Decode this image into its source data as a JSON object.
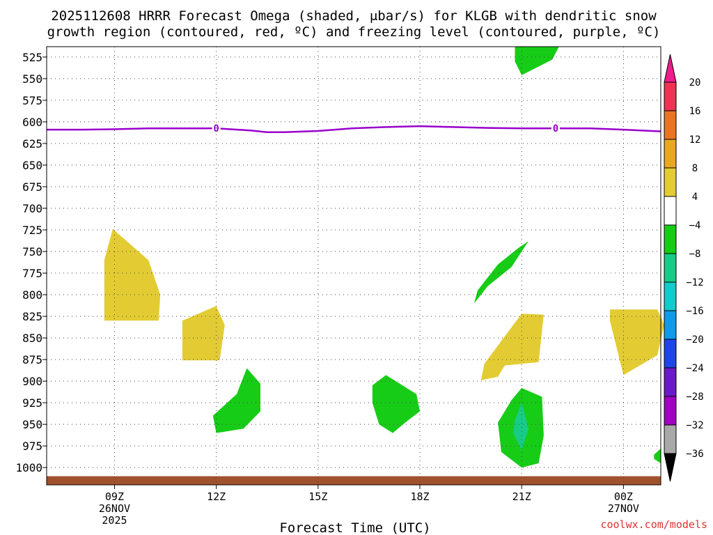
{
  "chart_data": {
    "type": "heatmap",
    "title_line1": "2025112608 HRRR Forecast Omega (shaded, μbar/s) for KLGB with dendritic snow",
    "title_line2": "growth region (contoured, red, ºC) and freezing level (contoured, purple, ºC)",
    "xlabel": "Forecast Time (UTC)",
    "x_range_hours": [
      7.0,
      25.1
    ],
    "x_ticks": [
      {
        "hour": 9,
        "label": "09Z",
        "sub1": "26NOV",
        "sub2": "2025"
      },
      {
        "hour": 12,
        "label": "12Z",
        "sub1": "",
        "sub2": ""
      },
      {
        "hour": 15,
        "label": "15Z",
        "sub1": "",
        "sub2": ""
      },
      {
        "hour": 18,
        "label": "18Z",
        "sub1": "",
        "sub2": ""
      },
      {
        "hour": 21,
        "label": "21Z",
        "sub1": "",
        "sub2": ""
      },
      {
        "hour": 24,
        "label": "00Z",
        "sub1": "27NOV",
        "sub2": ""
      }
    ],
    "y_range_hPa": [
      513,
      1020
    ],
    "y_ticks": [
      525,
      550,
      575,
      600,
      625,
      650,
      675,
      700,
      725,
      750,
      775,
      800,
      825,
      850,
      875,
      900,
      925,
      950,
      975,
      1000
    ],
    "grid": true,
    "freezing_level": {
      "label": "0",
      "color": "#9900cc",
      "label_hours": [
        12.0,
        22.0
      ],
      "hours": [
        7.0,
        8,
        9,
        10,
        11,
        12,
        13,
        13.5,
        14,
        15,
        16,
        17,
        18,
        19,
        20,
        21,
        22,
        23,
        24,
        25.1
      ],
      "pressure": [
        609,
        609,
        608.5,
        607.5,
        607.5,
        607.5,
        610,
        612,
        612,
        610.5,
        607.5,
        606,
        605,
        606,
        607,
        607.5,
        607.5,
        607.5,
        609,
        611
      ]
    },
    "omega_regions": [
      {
        "name": "positive-09Z",
        "value_class": "4 to 8",
        "hours": [
          8.7,
          8.7,
          8.95,
          10.0,
          10.35,
          10.3,
          8.7
        ],
        "pressure": [
          785,
          760,
          724,
          760,
          800,
          830,
          830
        ]
      },
      {
        "name": "positive-11Z",
        "value_class": "4 to 8",
        "hours": [
          11.0,
          12.0,
          12.25,
          12.1,
          11.0
        ],
        "pressure": [
          830,
          813,
          835,
          876,
          876
        ]
      },
      {
        "name": "negative-13Z",
        "value_class": "-8 to -4",
        "hours": [
          12.9,
          13.3,
          13.3,
          12.8,
          12.0,
          11.9,
          12.6
        ],
        "pressure": [
          885,
          903,
          935,
          955,
          960,
          940,
          915
        ]
      },
      {
        "name": "negative-17Z",
        "value_class": "-8 to -4",
        "hours": [
          16.6,
          17.0,
          17.9,
          18.0,
          17.6,
          17.2,
          16.8,
          16.6
        ],
        "pressure": [
          905,
          893,
          915,
          935,
          947,
          960,
          950,
          925
        ]
      },
      {
        "name": "negative-21Z-upper",
        "value_class": "-8 to -4",
        "hours": [
          20.9,
          21.2,
          20.7,
          20.0,
          19.6,
          19.7,
          20.3
        ],
        "pressure": [
          746,
          738,
          768,
          790,
          810,
          795,
          765
        ]
      },
      {
        "name": "positive-21Z",
        "value_class": "4 to 8",
        "hours": [
          20.6,
          21.0,
          21.65,
          21.5,
          20.5,
          20.3,
          19.8,
          19.9
        ],
        "pressure": [
          843,
          822,
          823,
          878,
          882,
          895,
          899,
          880
        ]
      },
      {
        "name": "negative-21Z-lower",
        "value_class": "-8 to -4",
        "hours": [
          20.7,
          21.0,
          21.6,
          21.65,
          21.5,
          21.0,
          20.4,
          20.3
        ],
        "pressure": [
          922,
          908,
          918,
          963,
          995,
          1000,
          982,
          948
        ]
      },
      {
        "name": "negative-21Z-core",
        "value_class": "-12 to -8",
        "hours": [
          20.8,
          21.0,
          21.2,
          21.0,
          20.75
        ],
        "pressure": [
          945,
          925,
          955,
          980,
          960
        ]
      },
      {
        "name": "negative-21Z-top",
        "value_class": "-8 to -4",
        "hours": [
          20.8,
          21.2,
          22.1,
          21.9,
          21.0,
          20.8
        ],
        "pressure": [
          513,
          513,
          513,
          528,
          546,
          530
        ]
      },
      {
        "name": "positive-00Z",
        "value_class": "4 to 8",
        "hours": [
          23.6,
          25.0,
          25.2,
          25.0,
          24.0,
          23.6
        ],
        "pressure": [
          817,
          817,
          835,
          870,
          893,
          830
        ]
      },
      {
        "name": "negative-01Z-corner",
        "value_class": "-8 to -4",
        "hours": [
          24.9,
          25.1,
          25.1,
          24.9
        ],
        "pressure": [
          985,
          978,
          995,
          990
        ]
      }
    ],
    "surface_strip": {
      "color": "#a0522d",
      "pressure_top": 1010
    },
    "colorbar": {
      "levels": [
        "20",
        "16",
        "12",
        "8",
        "4",
        "−4",
        "−8",
        "−12",
        "−16",
        "−20",
        "−24",
        "−28",
        "−32",
        "−36"
      ],
      "colors": [
        "#ee3355",
        "#e87525",
        "#e8a822",
        "#e3cc33",
        "#ffffff",
        "#17cc17",
        "#17cc88",
        "#12cccc",
        "#129ae8",
        "#1f44e8",
        "#6a1ac8",
        "#a000c0",
        "#a8a8a8"
      ],
      "top_arrow_color": "#ee1c8c",
      "bottom_arrow_color": "#000000"
    },
    "credit": "coolwx.com/models"
  }
}
